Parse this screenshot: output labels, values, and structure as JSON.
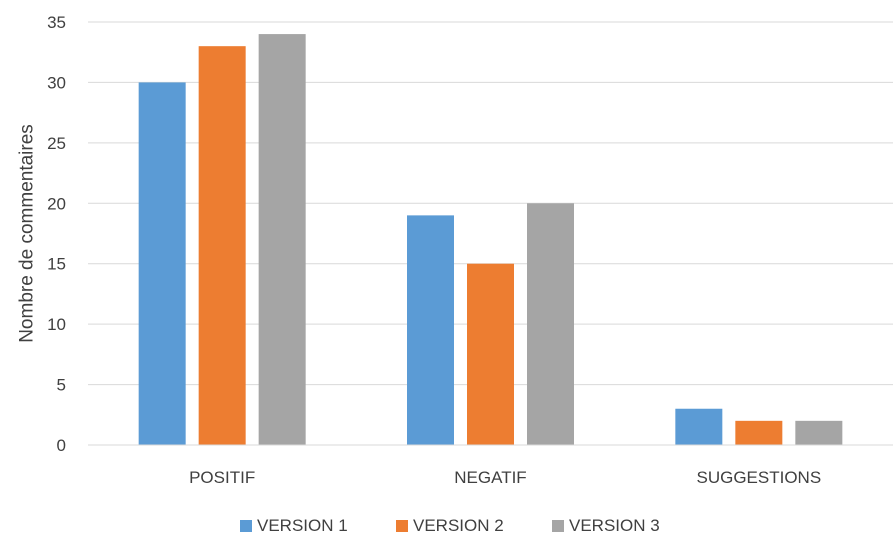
{
  "chart_data": {
    "type": "bar",
    "title": "",
    "xlabel": "",
    "ylabel": "Nombre de commentaires",
    "categories": [
      "POSITIF",
      "NEGATIF",
      "SUGGESTIONS"
    ],
    "series": [
      {
        "name": "VERSION 1",
        "color": "#5B9BD5",
        "values": [
          30,
          19,
          3
        ]
      },
      {
        "name": "VERSION 2",
        "color": "#ED7D31",
        "values": [
          33,
          15,
          2
        ]
      },
      {
        "name": "VERSION 3",
        "color": "#A5A5A5",
        "values": [
          34,
          20,
          2
        ]
      }
    ],
    "ylim": [
      0,
      35
    ],
    "yticks": [
      0,
      5,
      10,
      15,
      20,
      25,
      30,
      35
    ],
    "grid": true,
    "legend_position": "bottom"
  }
}
